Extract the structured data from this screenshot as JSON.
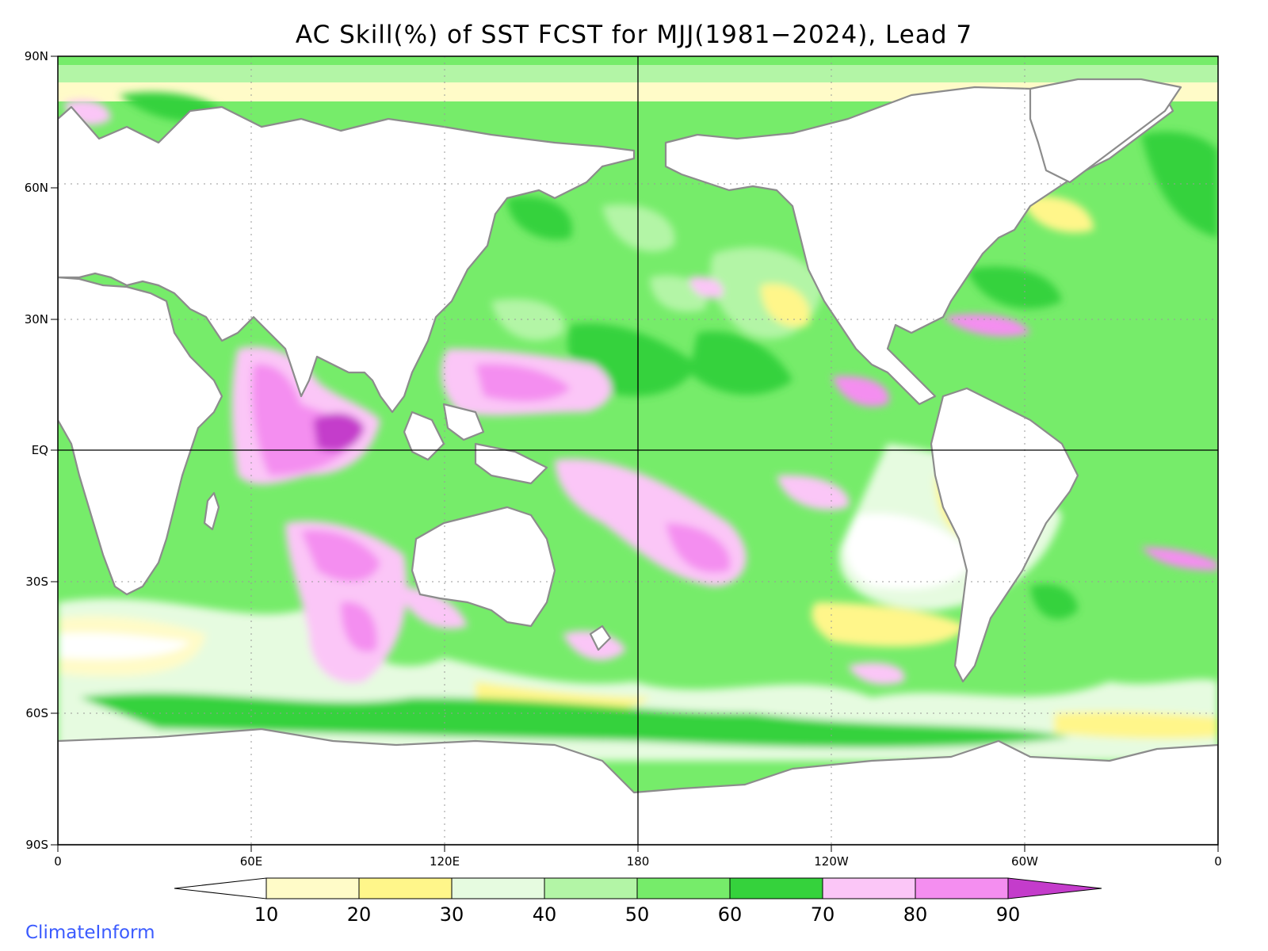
{
  "title": "AC Skill(%) of SST FCST for MJJ(1981−2024), Lead 7",
  "credit": "ClimateInform",
  "lat_labels": [
    "90N",
    "60N",
    "30N",
    "EQ",
    "30S",
    "60S",
    "90S"
  ],
  "lon_labels": [
    "0",
    "60E",
    "120E",
    "180",
    "120W",
    "60W",
    "0"
  ],
  "colorbar": {
    "levels": [
      "10",
      "20",
      "30",
      "40",
      "50",
      "60",
      "70",
      "80",
      "90"
    ],
    "colors": [
      "#ffffff",
      "#fffbc8",
      "#fff68a",
      "#e6fbe0",
      "#b3f5a6",
      "#76ec6a",
      "#35d23c",
      "#fbc6f7",
      "#f48ef0",
      "#c43ccb"
    ]
  },
  "colors": {
    "land": "#ffffff",
    "coast": "#8c8c8c",
    "grid": "#999999"
  }
}
